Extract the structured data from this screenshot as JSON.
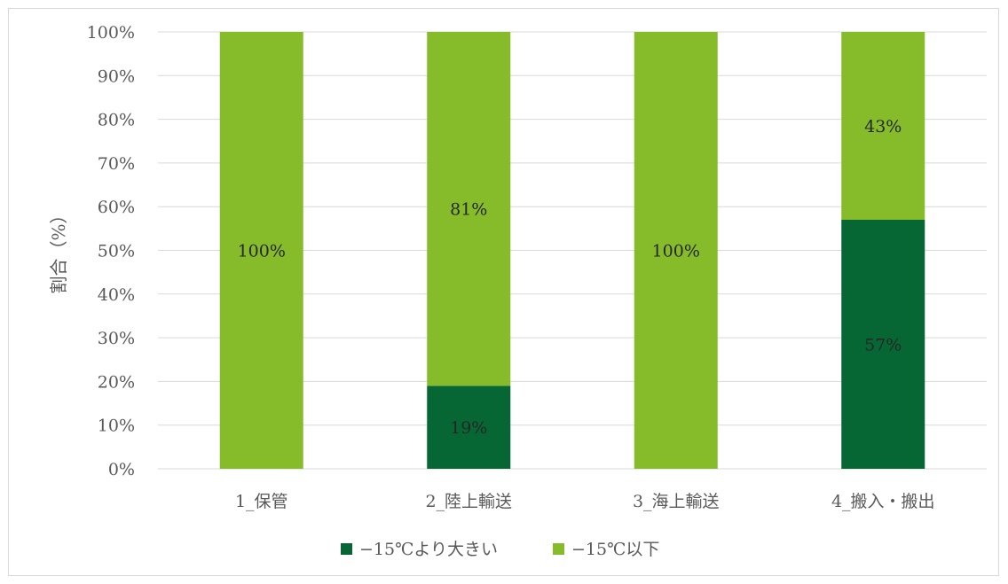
{
  "chart_data": {
    "type": "bar",
    "stacked": true,
    "categories": [
      "1_保管",
      "2_陸上輸送",
      "3_海上輸送",
      "4_搬入・搬出"
    ],
    "series": [
      {
        "name": "−15℃より大きい",
        "color": "#076734",
        "values": [
          0,
          19,
          0,
          57
        ],
        "labels": [
          "",
          "19%",
          "",
          "57%"
        ]
      },
      {
        "name": "−15℃以下",
        "color": "#86bb2a",
        "values": [
          100,
          81,
          100,
          43
        ],
        "labels": [
          "100%",
          "81%",
          "100%",
          "43%"
        ]
      }
    ],
    "title": "",
    "xlabel": "",
    "ylabel": "割合（%）",
    "ylim": [
      0,
      100
    ],
    "yticks": [
      "0%",
      "10%",
      "20%",
      "30%",
      "40%",
      "50%",
      "60%",
      "70%",
      "80%",
      "90%",
      "100%"
    ],
    "grid": true,
    "legend": "bottom"
  }
}
